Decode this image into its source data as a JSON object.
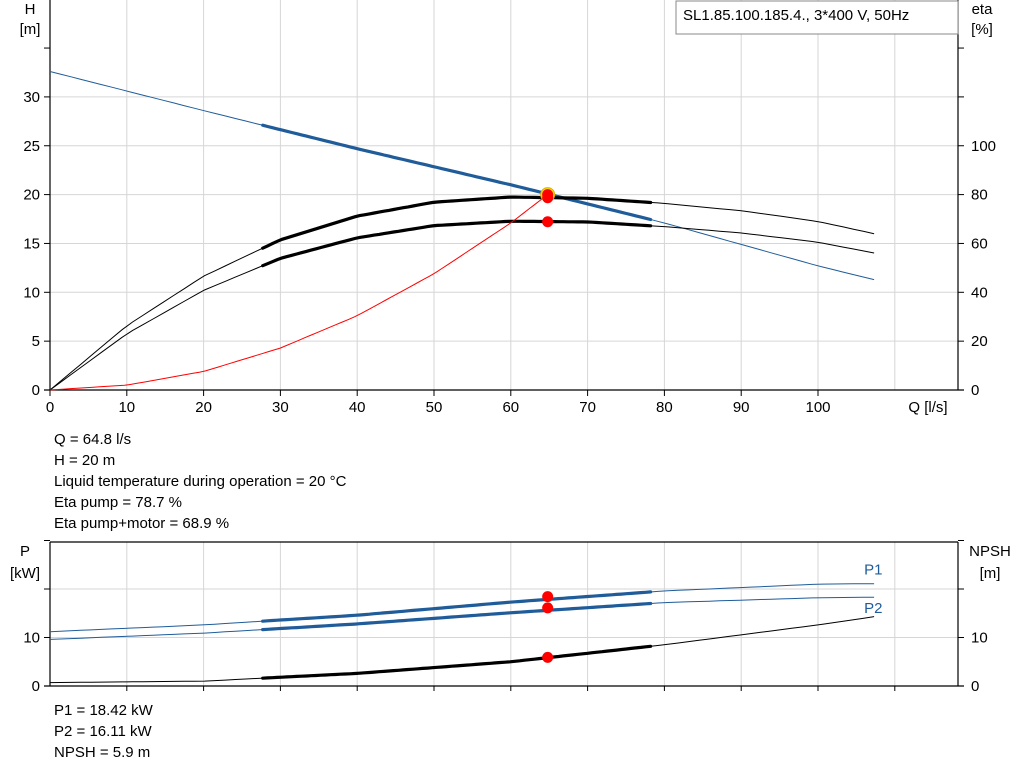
{
  "title_box": "SL1.85.100.185.4., 3*400 V, 50Hz",
  "info_top": [
    "Q = 64.8 l/s",
    "H = 20 m",
    "Liquid temperature during operation = 20 °C",
    "Eta pump = 78.7 %",
    "Eta pump+motor = 68.9 %"
  ],
  "info_bottom": [
    "P1 = 18.42 kW",
    "P2 = 16.11 kW",
    "NPSH = 5.9 m"
  ],
  "colors": {
    "blue": "#1f5c99",
    "black": "#000000",
    "red": "#ff0000",
    "marker_ring": "#d9b300",
    "grid": "#d6d6d6"
  },
  "chart_data": [
    {
      "type": "line",
      "name": "head-efficiency",
      "xlabel": "Q [l/s]",
      "ylabel_left": [
        "H",
        "[m]"
      ],
      "ylabel_right": [
        "eta",
        "[%]"
      ],
      "x_ticks": [
        "0",
        "10",
        "20",
        "30",
        "40",
        "50",
        "60",
        "70",
        "80",
        "90",
        "100"
      ],
      "y_left_ticks": [
        "0",
        "5",
        "10",
        "15",
        "20",
        "25",
        "30"
      ],
      "y_right_ticks": [
        "0",
        "20",
        "40",
        "60",
        "80",
        "100"
      ],
      "xlim": [
        0,
        117
      ],
      "ylim_left": [
        0,
        35
      ],
      "ylim_right": [
        0,
        140
      ],
      "series": [
        {
          "axis": "left",
          "color": "blue",
          "thin": [
            [
              0,
              32.6
            ],
            [
              20,
              28.6
            ],
            [
              40,
              24.7
            ],
            [
              60,
              21.0
            ],
            [
              80,
              17.1
            ],
            [
              100,
              12.7
            ],
            [
              107.3,
              11.3
            ]
          ],
          "bold_range": [
            27.7,
            78.2
          ]
        },
        {
          "axis": "right",
          "color": "black",
          "thin": [
            [
              0,
              0
            ],
            [
              10,
              26.3
            ],
            [
              20,
              46.6
            ],
            [
              30,
              61.5
            ],
            [
              40,
              71.2
            ],
            [
              50,
              76.9
            ],
            [
              60,
              79.0
            ],
            [
              70,
              78.5
            ],
            [
              80,
              76.4
            ],
            [
              90,
              73.4
            ],
            [
              100,
              69.0
            ],
            [
              107.3,
              64.0
            ]
          ],
          "bold_range": [
            27.7,
            78.2
          ]
        },
        {
          "axis": "right",
          "color": "black",
          "thin": [
            [
              0,
              0
            ],
            [
              10,
              23.0
            ],
            [
              20,
              40.8
            ],
            [
              30,
              53.9
            ],
            [
              40,
              62.3
            ],
            [
              50,
              67.3
            ],
            [
              60,
              69.1
            ],
            [
              70,
              68.8
            ],
            [
              80,
              66.9
            ],
            [
              90,
              64.3
            ],
            [
              100,
              60.5
            ],
            [
              107.3,
              56.1
            ]
          ],
          "bold_range": [
            27.7,
            78.2
          ]
        },
        {
          "axis": "left",
          "color": "red",
          "thin": [
            [
              0,
              0
            ],
            [
              10,
              0.5
            ],
            [
              20,
              1.9
            ],
            [
              30,
              4.3
            ],
            [
              40,
              7.6
            ],
            [
              50,
              11.9
            ],
            [
              60,
              17.1
            ],
            [
              64.8,
              20.0
            ]
          ]
        }
      ],
      "markers": [
        {
          "axis": "left",
          "x": 64.8,
          "y": 20.0,
          "ring": true
        },
        {
          "axis": "right",
          "x": 64.8,
          "y": 78.7
        },
        {
          "axis": "right",
          "x": 64.8,
          "y": 68.9
        }
      ]
    },
    {
      "type": "line",
      "name": "power-npsh",
      "ylabel_left": [
        "P",
        "[kW]"
      ],
      "ylabel_right": [
        "NPSH",
        "[m]"
      ],
      "y_left_ticks": [
        "0",
        "10"
      ],
      "y_right_ticks": [
        "0",
        "10"
      ],
      "xlim": [
        0,
        117
      ],
      "ylim_left": [
        0,
        30
      ],
      "ylim_right": [
        0,
        30
      ],
      "series": [
        {
          "name": "P1",
          "axis": "left",
          "color": "blue",
          "label": "P1",
          "thin": [
            [
              0,
              11.2
            ],
            [
              20,
              12.6
            ],
            [
              40,
              14.6
            ],
            [
              60,
              17.3
            ],
            [
              80,
              19.6
            ],
            [
              100,
              21.0
            ],
            [
              107.3,
              21.1
            ]
          ],
          "bold_range": [
            27.7,
            78.2
          ]
        },
        {
          "name": "P2",
          "axis": "left",
          "color": "blue",
          "label": "P2",
          "thin": [
            [
              0,
              9.6
            ],
            [
              20,
              10.9
            ],
            [
              40,
              12.8
            ],
            [
              60,
              15.1
            ],
            [
              80,
              17.2
            ],
            [
              100,
              18.2
            ],
            [
              107.3,
              18.3
            ]
          ],
          "bold_range": [
            27.7,
            78.2
          ]
        },
        {
          "axis": "right",
          "color": "black",
          "thin": [
            [
              0,
              0.7
            ],
            [
              20,
              1.0
            ],
            [
              40,
              2.6
            ],
            [
              60,
              5.0
            ],
            [
              80,
              8.5
            ],
            [
              100,
              12.6
            ],
            [
              107.3,
              14.3
            ]
          ],
          "bold_range": [
            27.7,
            78.2
          ]
        }
      ],
      "markers": [
        {
          "axis": "left",
          "x": 64.8,
          "y": 18.42
        },
        {
          "axis": "left",
          "x": 64.8,
          "y": 16.11
        },
        {
          "axis": "right",
          "x": 64.8,
          "y": 5.9
        }
      ]
    }
  ]
}
